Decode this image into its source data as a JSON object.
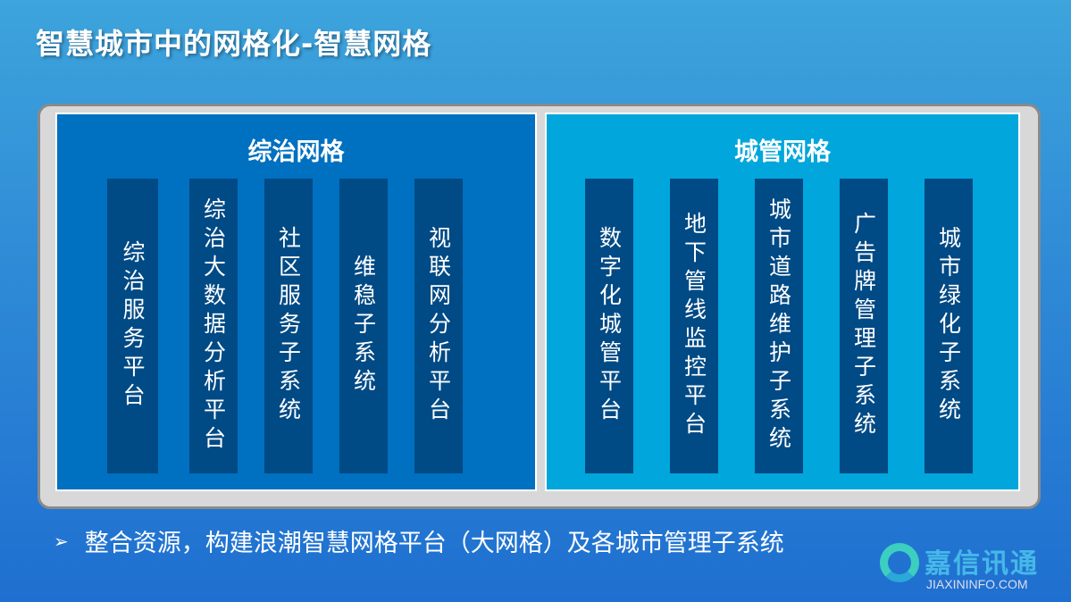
{
  "title": "智慧城市中的网格化-智慧网格",
  "left_panel": {
    "title": "综治网格",
    "items": [
      "综治服务平台",
      "综治大数据分析平台",
      "社区服务子系统",
      "维稳子系统",
      "视联网分析平台"
    ]
  },
  "right_panel": {
    "title": "城管网格",
    "items": [
      "数字化城管平台",
      "地下管线监控平台",
      "城市道路维护子系统",
      "广告牌管理子系统",
      "城市绿化子系统"
    ]
  },
  "bullet": {
    "icon": "arrow-right-icon",
    "symbol": "➢",
    "text": "整合资源，构建浪潮智慧网格平台（大网格）及各城市管理子系统"
  },
  "logo": {
    "cn": "嘉信讯通",
    "en": "JIAXININFO.COM"
  },
  "colors": {
    "left_panel": "#0070c0",
    "right_panel": "#00a6dc",
    "column": "#004a85"
  }
}
